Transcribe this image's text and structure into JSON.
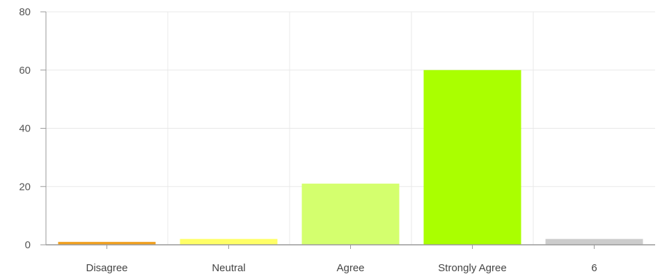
{
  "chart_data": {
    "type": "bar",
    "title": "",
    "xlabel": "",
    "ylabel": "",
    "categories": [
      "Disagree",
      "Neutral",
      "Agree",
      "Strongly Agree",
      "6"
    ],
    "values": [
      1,
      2,
      21,
      60,
      2
    ],
    "colors": [
      "#f0a020",
      "#ffff66",
      "#d4ff6e",
      "#aaff00",
      "#cccccc"
    ],
    "ylim": [
      0,
      80
    ],
    "yticks": [
      0,
      20,
      40,
      60,
      80
    ],
    "grid": true,
    "legend": "none"
  },
  "colors": {
    "grid": "#e8e8e8",
    "axis": "#999999"
  }
}
